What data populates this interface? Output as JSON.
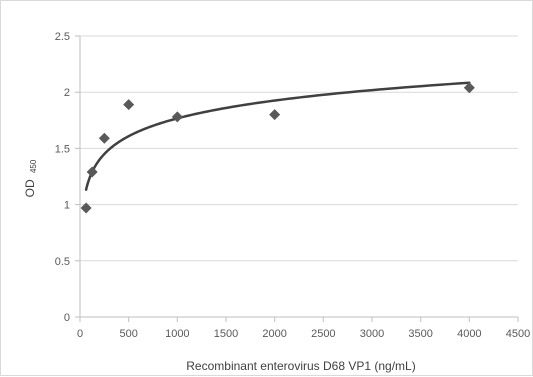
{
  "chart_data": {
    "type": "scatter",
    "title": "",
    "xlabel": "Recombinant enterovirus D68 VP1 (ng/mL)",
    "ylabel": "OD",
    "ylabel_subscript": "450",
    "xlim": [
      0,
      4500
    ],
    "ylim": [
      0,
      2.5
    ],
    "x_ticks": [
      "0",
      "500",
      "1000",
      "1500",
      "2000",
      "2500",
      "3000",
      "3500",
      "4000",
      "4500"
    ],
    "y_ticks": [
      "0",
      "0.5",
      "1",
      "1.5",
      "2",
      "2.5"
    ],
    "grid": "horizontal",
    "legend": "none",
    "series": [
      {
        "marker": "diamond",
        "x": [
          62.5,
          125,
          250,
          500,
          1000,
          2000,
          4000
        ],
        "y": [
          0.97,
          1.29,
          1.59,
          1.89,
          1.78,
          1.8,
          2.04
        ]
      }
    ],
    "trendline": {
      "type": "logarithmic",
      "x_range": [
        62.5,
        4000
      ],
      "approx_points": [
        [
          62.5,
          1.13
        ],
        [
          125,
          1.29
        ],
        [
          250,
          1.45
        ],
        [
          500,
          1.62
        ],
        [
          1000,
          1.76
        ],
        [
          2000,
          1.93
        ],
        [
          4000,
          2.08
        ]
      ]
    },
    "colors": {
      "marker": "#595959",
      "trendline": "#404040",
      "grid": "#d9d9d9",
      "axis": "#bfbfbf"
    }
  }
}
